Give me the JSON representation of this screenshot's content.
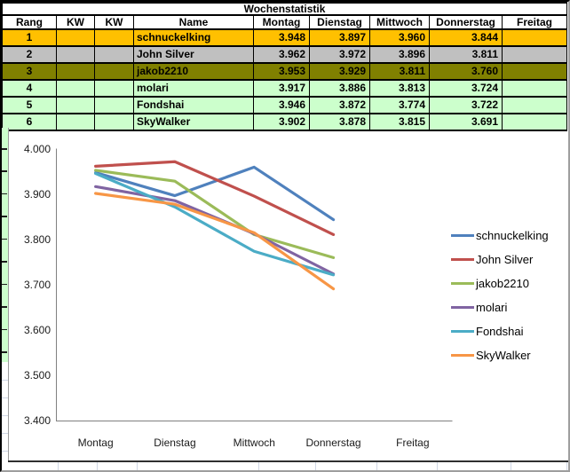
{
  "table": {
    "title": "Wochenstatistik",
    "columns": [
      "Rang",
      "KW",
      "KW",
      "Name",
      "Montag",
      "Dienstag",
      "Mittwoch",
      "Donnerstag",
      "Freitag"
    ],
    "rows": [
      {
        "rang": "1",
        "kw1": "",
        "kw2": "",
        "name": "schnuckelking",
        "values": [
          "3.948",
          "3.897",
          "3.960",
          "3.844",
          ""
        ],
        "row_color": "#FFC000"
      },
      {
        "rang": "2",
        "kw1": "",
        "kw2": "",
        "name": "John Silver",
        "values": [
          "3.962",
          "3.972",
          "3.896",
          "3.811",
          ""
        ],
        "row_color": "#C0C0C0"
      },
      {
        "rang": "3",
        "kw1": "",
        "kw2": "",
        "name": "jakob2210",
        "values": [
          "3.953",
          "3.929",
          "3.811",
          "3.760",
          ""
        ],
        "row_color": "#808000"
      },
      {
        "rang": "4",
        "kw1": "",
        "kw2": "",
        "name": "molari",
        "values": [
          "3.917",
          "3.886",
          "3.813",
          "3.724",
          ""
        ],
        "row_color": "#CCFFCC"
      },
      {
        "rang": "5",
        "kw1": "",
        "kw2": "",
        "name": "Fondshai",
        "values": [
          "3.946",
          "3.872",
          "3.774",
          "3.722",
          ""
        ],
        "row_color": "#CCFFCC"
      },
      {
        "rang": "6",
        "kw1": "",
        "kw2": "",
        "name": "SkyWalker",
        "values": [
          "3.902",
          "3.878",
          "3.815",
          "3.691",
          ""
        ],
        "row_color": "#CCFFCC"
      }
    ]
  },
  "chart_data": {
    "type": "line",
    "categories": [
      "Montag",
      "Dienstag",
      "Mittwoch",
      "Donnerstag",
      "Freitag"
    ],
    "series": [
      {
        "name": "schnuckelking",
        "color": "#4F81BD",
        "values": [
          3.948,
          3.897,
          3.96,
          3.844
        ]
      },
      {
        "name": "John Silver",
        "color": "#C0504D",
        "values": [
          3.962,
          3.972,
          3.896,
          3.811
        ]
      },
      {
        "name": "jakob2210",
        "color": "#9BBB59",
        "values": [
          3.953,
          3.929,
          3.811,
          3.76
        ]
      },
      {
        "name": "molari",
        "color": "#8064A2",
        "values": [
          3.917,
          3.886,
          3.813,
          3.724
        ]
      },
      {
        "name": "Fondshai",
        "color": "#4BACC6",
        "values": [
          3.946,
          3.872,
          3.774,
          3.722
        ]
      },
      {
        "name": "SkyWalker",
        "color": "#F79646",
        "values": [
          3.902,
          3.878,
          3.815,
          3.691
        ]
      }
    ],
    "ylim": [
      3.4,
      4.0
    ],
    "ytick_labels": [
      "4.000",
      "3.900",
      "3.800",
      "3.700",
      "3.600",
      "3.500",
      "3.400"
    ],
    "xlabel": "",
    "ylabel": "",
    "legend_position": "right",
    "grid": false,
    "axis_color": "#808080"
  }
}
